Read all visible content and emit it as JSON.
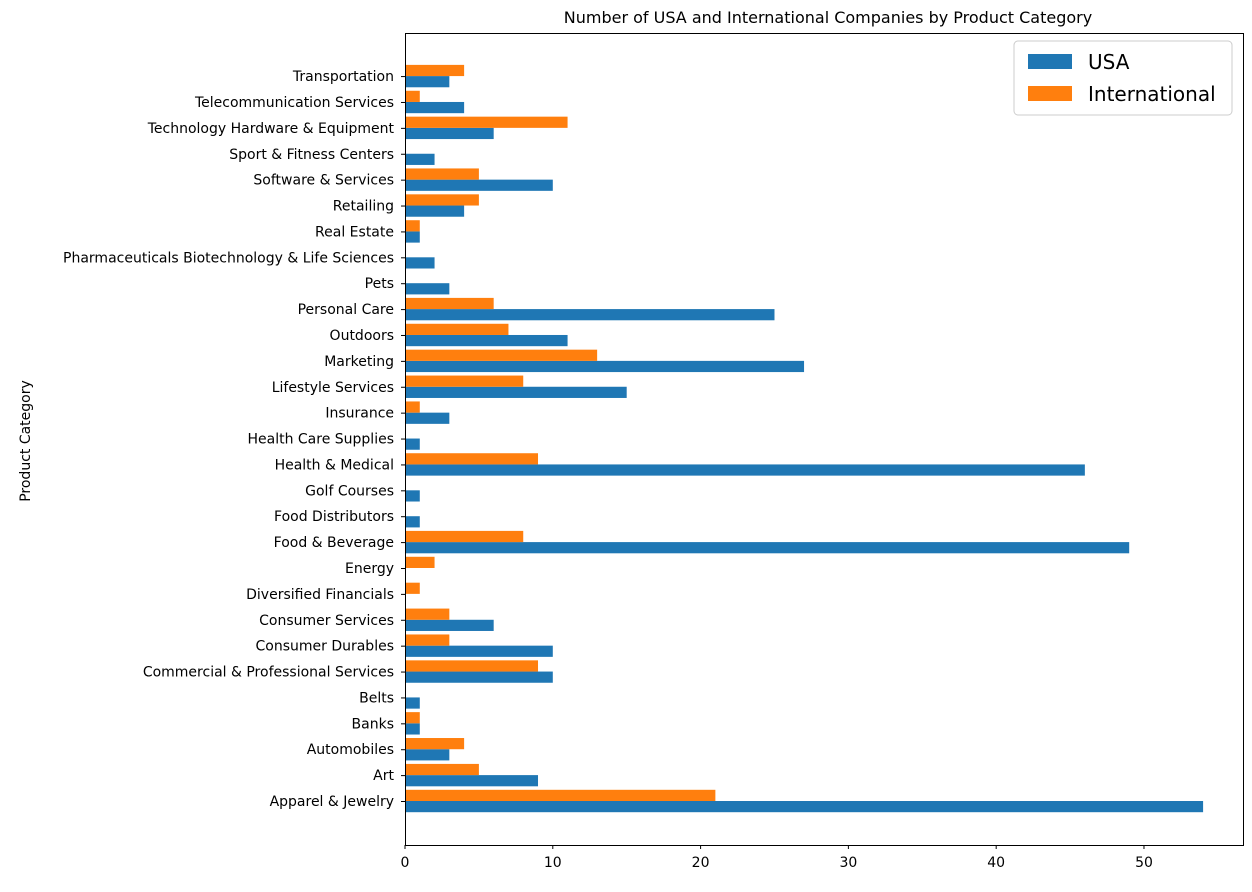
{
  "chart_data": {
    "type": "bar",
    "orientation": "horizontal",
    "title": "Number of USA and International Companies by Product Category",
    "xlabel": "",
    "ylabel": "Product Category",
    "xlim": [
      0,
      56.7
    ],
    "x_ticks": [
      0,
      10,
      20,
      30,
      40,
      50
    ],
    "grid": false,
    "legend_position": "top-right",
    "categories": [
      "Apparel & Jewelry",
      "Art",
      "Automobiles",
      "Banks",
      "Belts",
      "Commercial  & Professional Services",
      "Consumer Durables",
      "Consumer Services",
      "Diversified Financials",
      "Energy",
      "Food & Beverage",
      "Food Distributors",
      "Golf Courses",
      "Health & Medical",
      "Health Care Supplies",
      "Insurance",
      "Lifestyle Services",
      "Marketing",
      "Outdoors",
      "Personal Care",
      "Pets",
      "Pharmaceuticals Biotechnology & Life Sciences",
      "Real Estate",
      "Retailing",
      "Software & Services",
      "Sport & Fitness Centers",
      "Technology Hardware & Equipment",
      "Telecommunication Services",
      "Transportation"
    ],
    "series": [
      {
        "name": "USA",
        "color": "#1f77b4",
        "values": [
          54,
          9,
          3,
          1,
          1,
          10,
          10,
          6,
          0,
          0,
          49,
          1,
          1,
          46,
          1,
          3,
          15,
          27,
          11,
          25,
          3,
          2,
          1,
          4,
          10,
          2,
          6,
          4,
          3
        ]
      },
      {
        "name": "International",
        "color": "#ff7f0e",
        "values": [
          21,
          5,
          4,
          1,
          0,
          9,
          3,
          3,
          1,
          2,
          8,
          0,
          0,
          9,
          0,
          1,
          8,
          13,
          7,
          6,
          0,
          0,
          1,
          5,
          5,
          0,
          11,
          1,
          4
        ]
      }
    ]
  }
}
